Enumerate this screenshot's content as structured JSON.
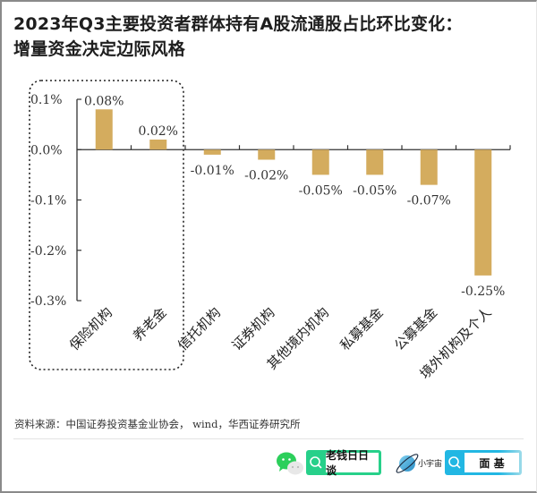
{
  "title_line1": "2023年Q3主要投资者群体持有A股流通股占比环比变化：",
  "title_line2": "增量资金决定边际风格",
  "chart_data": {
    "type": "bar",
    "title": "2023年Q3主要投资者群体持有A股流通股占比环比变化：增量资金决定边际风格",
    "xlabel": "",
    "ylabel": "",
    "categories": [
      "保险机构",
      "养老金",
      "信托机构",
      "证券机构",
      "其他境内机构",
      "私募基金",
      "公募基金",
      "境外机构及个人"
    ],
    "values": [
      0.08,
      0.02,
      -0.01,
      -0.02,
      -0.05,
      -0.05,
      -0.07,
      -0.25
    ],
    "value_labels": [
      "0.08%",
      "0.02%",
      "-0.01%",
      "-0.02%",
      "-0.05%",
      "-0.05%",
      "-0.07%",
      "-0.25%"
    ],
    "unit": "%",
    "ylim": [
      -0.3,
      0.1
    ],
    "yticks": [
      0.1,
      0.0,
      -0.1,
      -0.2,
      -0.3
    ],
    "ytick_labels": [
      "0.1%",
      "0.0%",
      "-0.1%",
      "-0.2%",
      "-0.3%"
    ],
    "grid": false,
    "legend": "none",
    "bar_color": "#d4ac5e",
    "highlight": {
      "categories": [
        "保险机构",
        "养老金"
      ],
      "style": "dotted rounded box"
    }
  },
  "source": "资料来源：中国证券投资基金业协会， wind，华西证券研究所",
  "footer": {
    "wechat_icon": "wechat-icon",
    "green_search_label": "老钱日日谈",
    "planet_label": "小宇宙",
    "blue_search_label": "面 基",
    "green_color": "#27d08a",
    "blue_color": "#22b7e3"
  }
}
